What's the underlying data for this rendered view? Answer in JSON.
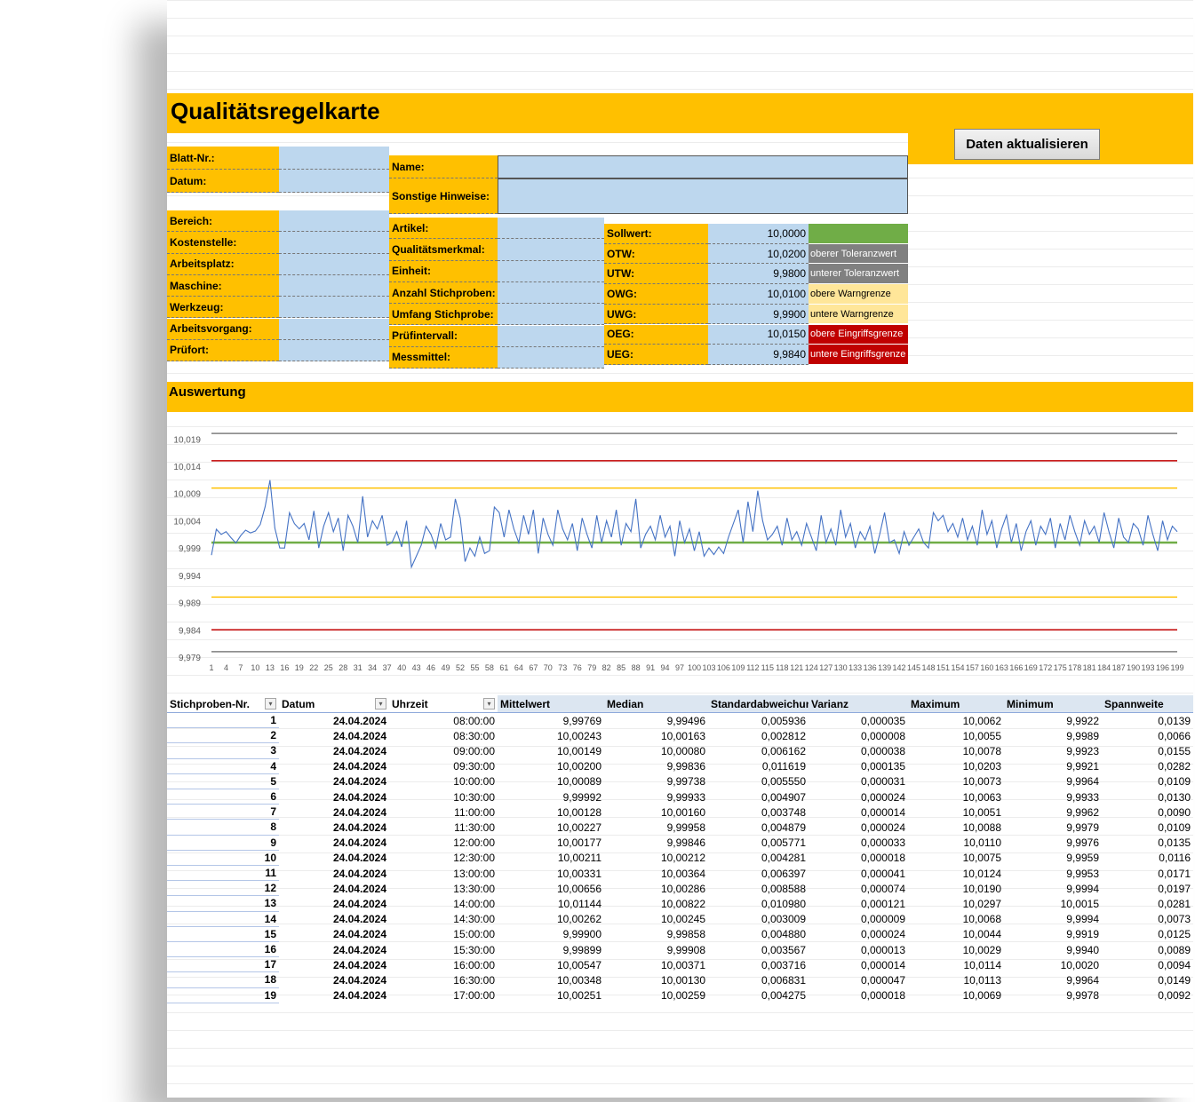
{
  "title": "Qualitätsregelkarte",
  "button": "Daten aktualisieren",
  "header_fields": {
    "left": [
      "Blatt-Nr.:",
      "Datum:"
    ],
    "right": [
      "Name:",
      "Sonstige Hinweise:"
    ]
  },
  "details": {
    "col1": [
      "Bereich:",
      "Kostenstelle:",
      "Arbeitsplatz:",
      "Maschine:",
      "Werkzeug:",
      "Arbeitsvorgang:",
      "Prüfort:"
    ],
    "col2": [
      "Artikel:",
      "Qualitätsmerkmal:",
      "Einheit:",
      "Anzahl Stichproben:",
      "Umfang Stichprobe:",
      "Prüfintervall:",
      "Messmittel:"
    ]
  },
  "limits": [
    {
      "label": "Sollwert:",
      "value": "10,0000",
      "color": "#70ad47",
      "text_color": "#ffffff"
    },
    {
      "label": "OTW:",
      "value": "10,0200",
      "note": "oberer Toleranzwert",
      "color": "#808080",
      "text_color": "#ffffff"
    },
    {
      "label": "UTW:",
      "value": "9,9800",
      "note": "unterer Toleranzwert",
      "color": "#808080",
      "text_color": "#ffffff"
    },
    {
      "label": "OWG:",
      "value": "10,0100",
      "note": "obere Warngrenze",
      "color": "#ffe699",
      "text_color": "#000000"
    },
    {
      "label": "UWG:",
      "value": "9,9900",
      "note": "untere Warngrenze",
      "color": "#ffe699",
      "text_color": "#000000"
    },
    {
      "label": "OEG:",
      "value": "10,0150",
      "note": "obere Eingriffsgrenze",
      "color": "#c00000",
      "text_color": "#ffffff"
    },
    {
      "label": "UEG:",
      "value": "9,9840",
      "note": "untere Eingriffsgrenze",
      "color": "#c00000",
      "text_color": "#ffffff"
    }
  ],
  "section": "Auswertung",
  "chart_data": {
    "type": "line",
    "categories": [
      1,
      null,
      null,
      4,
      null,
      null,
      7,
      null,
      null,
      10,
      null,
      null,
      13,
      null,
      null,
      16,
      null,
      null,
      19,
      null,
      null,
      22,
      null,
      null,
      25,
      null,
      null,
      28,
      null,
      null,
      31,
      null,
      null,
      34,
      null,
      null,
      37,
      null,
      null,
      40,
      null,
      null,
      43,
      null,
      null,
      46,
      null,
      null,
      49,
      null,
      null,
      52,
      null,
      null,
      55,
      null,
      null,
      58,
      null,
      null,
      61,
      null,
      null,
      64,
      null,
      null,
      67,
      null,
      null,
      70,
      null,
      null,
      73,
      null,
      null,
      76,
      null,
      null,
      79,
      null,
      null,
      82,
      null,
      null,
      85,
      null,
      null,
      88,
      null,
      null,
      91,
      null,
      null,
      94,
      null,
      null,
      97,
      null,
      null,
      100,
      null,
      null,
      103,
      null,
      null,
      106,
      null,
      null,
      109,
      null,
      null,
      112,
      null,
      null,
      115,
      null,
      null,
      118,
      null,
      null,
      121,
      null,
      null,
      124,
      null,
      null,
      127,
      null,
      null,
      130,
      null,
      null,
      133,
      null,
      null,
      136,
      null,
      null,
      139,
      null,
      null,
      142,
      null,
      null,
      145,
      null,
      null,
      148,
      null,
      null,
      151,
      null,
      null,
      154,
      null,
      null,
      157,
      null,
      null,
      160,
      null,
      null,
      163,
      null,
      null,
      166,
      null,
      null,
      169,
      null,
      null,
      172,
      null,
      null,
      175,
      null,
      null,
      178,
      null,
      null,
      181,
      null,
      null,
      184,
      null,
      null,
      187,
      null,
      null,
      190,
      null,
      null,
      193,
      null,
      null,
      196,
      null,
      null,
      199
    ],
    "series": [
      {
        "color": "#4472c4",
        "values": [
          9.99769,
          10.00243,
          10.00149,
          10.002,
          10.00089,
          9.99992,
          10.00128,
          10.00227,
          10.00177,
          10.00211,
          10.00331,
          10.00656,
          10.01144,
          10.00262,
          9.999,
          9.99899,
          10.00547,
          10.00348,
          10.00251,
          10.0035,
          10.0005,
          10.0058,
          9.999,
          10.003,
          10.0055,
          10.002,
          10.0045,
          9.9985,
          10.005,
          10.003,
          10.0,
          10.0085,
          10.001,
          10.004,
          10.0025,
          10.005,
          9.9995,
          10.0,
          10.002,
          9.9992,
          10.004,
          9.9955,
          9.9975,
          9.9995,
          10.003,
          10.0015,
          9.999,
          10.0035,
          10.0005,
          10.001,
          10.008,
          10.0045,
          9.9965,
          9.999,
          9.9975,
          10.001,
          9.998,
          9.9985,
          10.0065,
          10.0055,
          10.001,
          10.006,
          10.0025,
          10.0,
          10.005,
          10.0015,
          10.006,
          9.998,
          10.0045,
          10.0015,
          9.9995,
          10.006,
          10.0025,
          10.0005,
          10.0035,
          9.9985,
          10.0045,
          10.0015,
          9.999,
          10.005,
          10.0,
          10.004,
          10.001,
          10.006,
          9.9995,
          10.0035,
          10.002,
          10.008,
          9.999,
          10.0015,
          10.003,
          10.0005,
          10.005,
          10.001,
          10.003,
          9.9975,
          10.004,
          10.0,
          10.0025,
          9.9985,
          10.002,
          9.9975,
          9.999,
          9.9978,
          9.9992,
          9.998,
          10.001,
          10.0035,
          10.006,
          10.0,
          10.0075,
          10.002,
          10.0095,
          10.004,
          10.0005,
          10.0015,
          10.003,
          9.9995,
          10.0045,
          10.0005,
          10.002,
          9.9995,
          10.0035,
          10.001,
          9.9985,
          10.005,
          10.0,
          10.0025,
          9.9995,
          10.006,
          10.001,
          10.0035,
          9.999,
          10.002,
          10.0005,
          10.003,
          9.998,
          10.0015,
          10.0055,
          10.0,
          10.0005,
          9.998,
          10.002,
          9.9995,
          10.001,
          10.0025,
          10.0,
          9.999,
          10.0055,
          10.004,
          10.005,
          10.002,
          10.0035,
          10.001,
          10.0045,
          10.0005,
          10.003,
          9.9995,
          10.006,
          10.0015,
          10.004,
          9.999,
          10.0025,
          10.005,
          10.0,
          10.0035,
          9.9985,
          10.002,
          10.004,
          9.9995,
          10.003,
          10.0015,
          10.0045,
          9.999,
          10.0035,
          10.0005,
          10.005,
          10.002,
          9.9995,
          10.004,
          10.0015,
          10.003,
          10.0,
          10.0055,
          10.002,
          9.999,
          10.0045,
          10.001,
          10.0,
          10.0035,
          10.0025,
          9.9995,
          10.005,
          10.0015,
          9.9985,
          10.004,
          10.0005,
          10.003,
          10.002
        ]
      }
    ],
    "reference_lines": [
      {
        "value": 10.02,
        "color": "#7f7f7f"
      },
      {
        "value": 10.015,
        "color": "#c00000"
      },
      {
        "value": 10.01,
        "color": "#ffc000"
      },
      {
        "value": 10.0,
        "color": "#70ad47"
      },
      {
        "value": 9.99,
        "color": "#ffc000"
      },
      {
        "value": 9.984,
        "color": "#c00000"
      },
      {
        "value": 9.98,
        "color": "#7f7f7f"
      }
    ],
    "ylim": [
      9.979,
      10.021
    ],
    "yticks": [
      {
        "value": 9.979,
        "label": "9,979"
      },
      {
        "value": 9.984,
        "label": "9,984"
      },
      {
        "value": 9.989,
        "label": "9,989"
      },
      {
        "value": 9.994,
        "label": "9,994"
      },
      {
        "value": 9.999,
        "label": "9,999"
      },
      {
        "value": 10.004,
        "label": "10,004"
      },
      {
        "value": 10.009,
        "label": "10,009"
      },
      {
        "value": 10.014,
        "label": "10,014"
      },
      {
        "value": 10.019,
        "label": "10,019"
      }
    ],
    "grid": false
  },
  "table": {
    "columns": [
      "Stichproben-Nr.",
      "Datum",
      "Uhrzeit",
      "Mittelwert",
      "Median",
      "Standardabweichung",
      "Varianz",
      "Maximum",
      "Minimum",
      "Spannweite"
    ],
    "rows": [
      [
        "1",
        "24.04.2024",
        "08:00:00",
        "9,99769",
        "9,99496",
        "0,005936",
        "0,000035",
        "10,0062",
        "9,9922",
        "0,0139"
      ],
      [
        "2",
        "24.04.2024",
        "08:30:00",
        "10,00243",
        "10,00163",
        "0,002812",
        "0,000008",
        "10,0055",
        "9,9989",
        "0,0066"
      ],
      [
        "3",
        "24.04.2024",
        "09:00:00",
        "10,00149",
        "10,00080",
        "0,006162",
        "0,000038",
        "10,0078",
        "9,9923",
        "0,0155"
      ],
      [
        "4",
        "24.04.2024",
        "09:30:00",
        "10,00200",
        "9,99836",
        "0,011619",
        "0,000135",
        "10,0203",
        "9,9921",
        "0,0282"
      ],
      [
        "5",
        "24.04.2024",
        "10:00:00",
        "10,00089",
        "9,99738",
        "0,005550",
        "0,000031",
        "10,0073",
        "9,9964",
        "0,0109"
      ],
      [
        "6",
        "24.04.2024",
        "10:30:00",
        "9,99992",
        "9,99933",
        "0,004907",
        "0,000024",
        "10,0063",
        "9,9933",
        "0,0130"
      ],
      [
        "7",
        "24.04.2024",
        "11:00:00",
        "10,00128",
        "10,00160",
        "0,003748",
        "0,000014",
        "10,0051",
        "9,9962",
        "0,0090"
      ],
      [
        "8",
        "24.04.2024",
        "11:30:00",
        "10,00227",
        "9,99958",
        "0,004879",
        "0,000024",
        "10,0088",
        "9,9979",
        "0,0109"
      ],
      [
        "9",
        "24.04.2024",
        "12:00:00",
        "10,00177",
        "9,99846",
        "0,005771",
        "0,000033",
        "10,0110",
        "9,9976",
        "0,0135"
      ],
      [
        "10",
        "24.04.2024",
        "12:30:00",
        "10,00211",
        "10,00212",
        "0,004281",
        "0,000018",
        "10,0075",
        "9,9959",
        "0,0116"
      ],
      [
        "11",
        "24.04.2024",
        "13:00:00",
        "10,00331",
        "10,00364",
        "0,006397",
        "0,000041",
        "10,0124",
        "9,9953",
        "0,0171"
      ],
      [
        "12",
        "24.04.2024",
        "13:30:00",
        "10,00656",
        "10,00286",
        "0,008588",
        "0,000074",
        "10,0190",
        "9,9994",
        "0,0197"
      ],
      [
        "13",
        "24.04.2024",
        "14:00:00",
        "10,01144",
        "10,00822",
        "0,010980",
        "0,000121",
        "10,0297",
        "10,0015",
        "0,0281"
      ],
      [
        "14",
        "24.04.2024",
        "14:30:00",
        "10,00262",
        "10,00245",
        "0,003009",
        "0,000009",
        "10,0068",
        "9,9994",
        "0,0073"
      ],
      [
        "15",
        "24.04.2024",
        "15:00:00",
        "9,99900",
        "9,99858",
        "0,004880",
        "0,000024",
        "10,0044",
        "9,9919",
        "0,0125"
      ],
      [
        "16",
        "24.04.2024",
        "15:30:00",
        "9,99899",
        "9,99908",
        "0,003567",
        "0,000013",
        "10,0029",
        "9,9940",
        "0,0089"
      ],
      [
        "17",
        "24.04.2024",
        "16:00:00",
        "10,00547",
        "10,00371",
        "0,003716",
        "0,000014",
        "10,0114",
        "10,0020",
        "0,0094"
      ],
      [
        "18",
        "24.04.2024",
        "16:30:00",
        "10,00348",
        "10,00130",
        "0,006831",
        "0,000047",
        "10,0113",
        "9,9964",
        "0,0149"
      ],
      [
        "19",
        "24.04.2024",
        "17:00:00",
        "10,00251",
        "10,00259",
        "0,004275",
        "0,000018",
        "10,0069",
        "9,9978",
        "0,0092"
      ]
    ]
  }
}
